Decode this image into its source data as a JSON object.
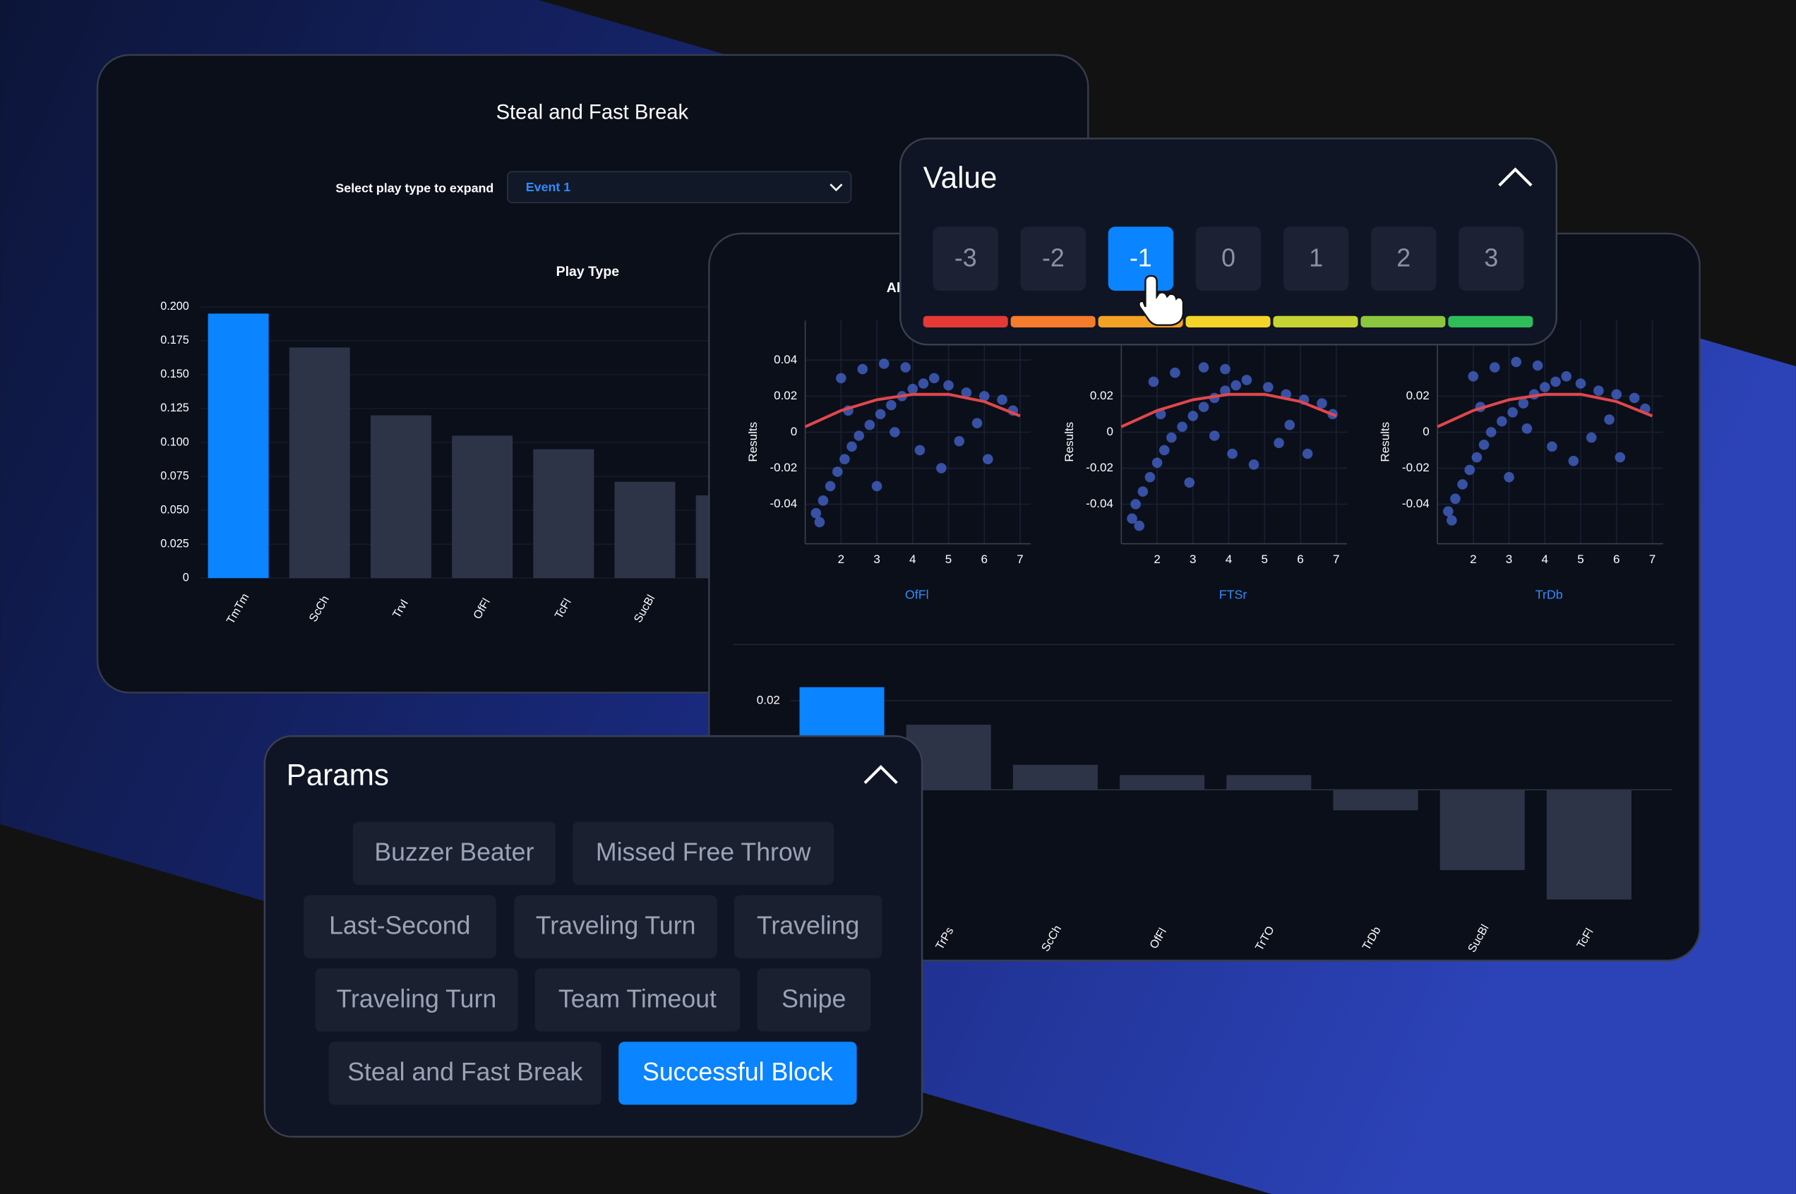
{
  "back_panel": {
    "control_label": "Select play type to expand",
    "dropdown_value": "Event 1",
    "chart_data": {
      "type": "bar",
      "title": "Steal and Fast Break",
      "subtitle": "Play Type",
      "categories": [
        "TmTm",
        "ScCh",
        "TrvI",
        "OfFl",
        "TcFl",
        "SucBl",
        null
      ],
      "values": [
        0.195,
        0.17,
        0.12,
        0.105,
        0.095,
        0.071,
        0.061
      ],
      "colors": [
        "#0a84ff",
        "#2d3448",
        "#2d3448",
        "#2d3448",
        "#2d3448",
        "#2d3448",
        "#2d3448"
      ],
      "ylim": [
        0,
        0.2
      ],
      "yticks": [
        0,
        0.025,
        {
          "value": 0.05,
          "label": "0.050"
        },
        0.075,
        {
          "value": 0.1,
          "label": "0.100"
        },
        0.125,
        {
          "value": 0.15,
          "label": "0.150"
        },
        0.175,
        {
          "value": 0.2,
          "label": "0.200"
        }
      ]
    }
  },
  "scatter_panel": {
    "heading": "Al",
    "charts": [
      {
        "type": "scatter",
        "xlabel": "OfFl",
        "ylabel": "Results",
        "color": "#4a6ee0",
        "x": [
          1.3,
          1.5,
          1.7,
          1.9,
          2.1,
          2.3,
          2.5,
          2.8,
          3.1,
          3.4,
          3.7,
          4.0,
          4.3,
          2.0,
          2.6,
          3.2,
          3.8,
          4.6,
          5.0,
          5.5,
          6.0,
          6.5,
          4.2,
          4.8,
          5.3,
          6.1,
          3.0,
          5.8,
          1.4,
          2.2,
          6.8,
          3.5
        ],
        "values": [
          -0.045,
          -0.038,
          -0.03,
          -0.022,
          -0.015,
          -0.008,
          -0.002,
          0.004,
          0.01,
          0.015,
          0.02,
          0.024,
          0.027,
          0.03,
          0.035,
          0.038,
          0.036,
          0.03,
          0.026,
          0.022,
          0.02,
          0.018,
          -0.01,
          -0.02,
          -0.005,
          -0.015,
          -0.03,
          0.005,
          -0.05,
          0.012,
          0.012,
          0
        ],
        "xlim": [
          1,
          7.3
        ],
        "xticks": [
          2,
          3,
          4,
          5,
          6,
          7
        ],
        "ylim": [
          -0.062,
          0.062
        ],
        "yticks": [
          0.04,
          0.02,
          0,
          -0.02,
          -0.04
        ],
        "fit": {
          "color": "#e0474c",
          "x": [
            1,
            2,
            3,
            4,
            5,
            6,
            7
          ],
          "values": [
            0.003,
            0.012,
            0.018,
            0.021,
            0.021,
            0.017,
            0.009
          ]
        }
      },
      {
        "type": "scatter",
        "xlabel": "FTSr",
        "ylabel": "Results",
        "color": "#4a6ee0",
        "x": [
          1.3,
          1.4,
          1.6,
          1.8,
          2.0,
          2.2,
          2.4,
          2.7,
          3.0,
          3.3,
          3.6,
          3.9,
          4.2,
          1.9,
          2.5,
          3.3,
          3.9,
          4.5,
          5.1,
          5.6,
          6.1,
          6.6,
          4.1,
          4.7,
          5.4,
          6.2,
          2.9,
          5.7,
          1.5,
          2.1,
          6.9,
          3.6
        ],
        "values": [
          -0.048,
          -0.04,
          -0.033,
          -0.025,
          -0.017,
          -0.01,
          -0.003,
          0.003,
          0.009,
          0.014,
          0.019,
          0.023,
          0.026,
          0.028,
          0.033,
          0.036,
          0.035,
          0.029,
          0.025,
          0.021,
          0.018,
          0.016,
          -0.012,
          -0.018,
          -0.006,
          -0.012,
          -0.028,
          0.004,
          -0.052,
          0.01,
          0.01,
          -0.002
        ],
        "xlim": [
          1,
          7.3
        ],
        "xticks": [
          2,
          3,
          4,
          5,
          6,
          7
        ],
        "ylim": [
          -0.062,
          0.062
        ],
        "yticks": [
          0.02,
          0,
          -0.02,
          -0.04
        ],
        "fit": {
          "color": "#e0474c",
          "x": [
            1,
            2,
            3,
            4,
            5,
            6,
            7
          ],
          "values": [
            0.003,
            0.012,
            0.018,
            0.021,
            0.021,
            0.017,
            0.009
          ]
        }
      },
      {
        "type": "scatter",
        "xlabel": "TrDb",
        "ylabel": "Results",
        "color": "#4a6ee0",
        "x": [
          1.3,
          1.5,
          1.7,
          1.9,
          2.1,
          2.3,
          2.5,
          2.8,
          3.1,
          3.4,
          3.7,
          4.0,
          4.3,
          2.0,
          2.6,
          3.2,
          3.8,
          4.6,
          5.0,
          5.5,
          6.0,
          6.5,
          4.2,
          4.8,
          5.3,
          6.1,
          3.0,
          5.8,
          1.4,
          2.2,
          6.8,
          3.5
        ],
        "values": [
          -0.044,
          -0.037,
          -0.029,
          -0.021,
          -0.014,
          -0.007,
          0,
          0.006,
          0.011,
          0.016,
          0.021,
          0.025,
          0.028,
          0.031,
          0.036,
          0.039,
          0.037,
          0.031,
          0.027,
          0.023,
          0.021,
          0.019,
          -0.008,
          -0.016,
          -0.003,
          -0.014,
          -0.025,
          0.007,
          -0.049,
          0.014,
          0.013,
          0.002
        ],
        "xlim": [
          1,
          7.3
        ],
        "xticks": [
          2,
          3,
          4,
          5,
          6,
          7
        ],
        "ylim": [
          -0.062,
          0.062
        ],
        "yticks": [
          0.02,
          0,
          -0.02,
          -0.04
        ],
        "fit": {
          "color": "#e0474c",
          "x": [
            1,
            2,
            3,
            4,
            5,
            6,
            7
          ],
          "values": [
            0.003,
            0.012,
            0.018,
            0.021,
            0.021,
            0.017,
            0.009
          ]
        }
      }
    ],
    "bar_chart": {
      "type": "bar",
      "categories": [
        null,
        "TrPs",
        "ScCh",
        "OfFl",
        "TrTO",
        "TrDb",
        "SucBl",
        "TcFl"
      ],
      "values": [
        0.023,
        0.0146,
        0.0056,
        0.0033,
        0.0033,
        -0.0046,
        -0.018,
        -0.0246
      ],
      "colors": [
        "#0a84ff",
        "#2d3448",
        "#2d3448",
        "#2d3448",
        "#2d3448",
        "#2d3448",
        "#2d3448",
        "#2d3448"
      ],
      "ylim": [
        -0.028,
        0.03
      ],
      "yticks": [
        0.02
      ]
    }
  },
  "value_panel": {
    "title": "Value",
    "options": [
      -3,
      -2,
      -1,
      0,
      1,
      2,
      3
    ],
    "selected": -1,
    "scale_colors": [
      "#e53935",
      "#f57c2b",
      "#f4a225",
      "#f5d42a",
      "#c5d433",
      "#8cc63f",
      "#2ebd59"
    ]
  },
  "params_panel": {
    "title": "Params",
    "rows": [
      [
        "Buzzer Beater",
        "Missed Free Throw"
      ],
      [
        "Last-Second",
        "Traveling Turn",
        "Traveling"
      ],
      [
        "Traveling Turn",
        "Team Timeout",
        "Snipe"
      ],
      [
        "Steal and Fast Break",
        "Successful Block"
      ]
    ],
    "selected": "Successful Block"
  }
}
